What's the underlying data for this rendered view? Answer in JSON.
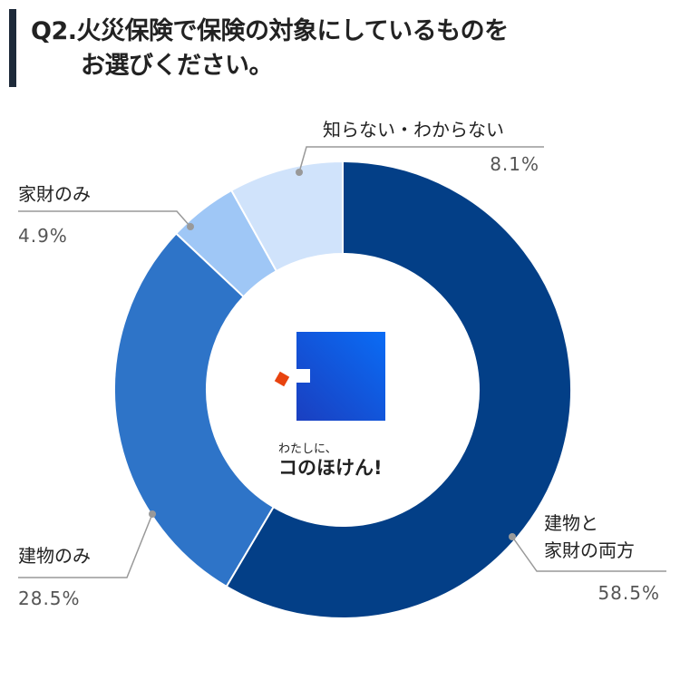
{
  "chart_data": {
    "type": "donut",
    "title": "Q2.火災保険で保険の対象にしているものを\nお選びください。",
    "categories": [
      "建物と\n家財の両方",
      "建物のみ",
      "家財のみ",
      "知らない・わからない"
    ],
    "values": [
      58.5,
      28.5,
      4.9,
      8.1
    ],
    "value_labels": [
      "58.5%",
      "28.5%",
      "4.9%",
      "8.1%"
    ],
    "colors": [
      "#033f87",
      "#2e74c8",
      "#9fc7f6",
      "#d0e3fb"
    ]
  },
  "logo": {
    "tagline": "わたしに、",
    "name": "コのほけん!"
  }
}
